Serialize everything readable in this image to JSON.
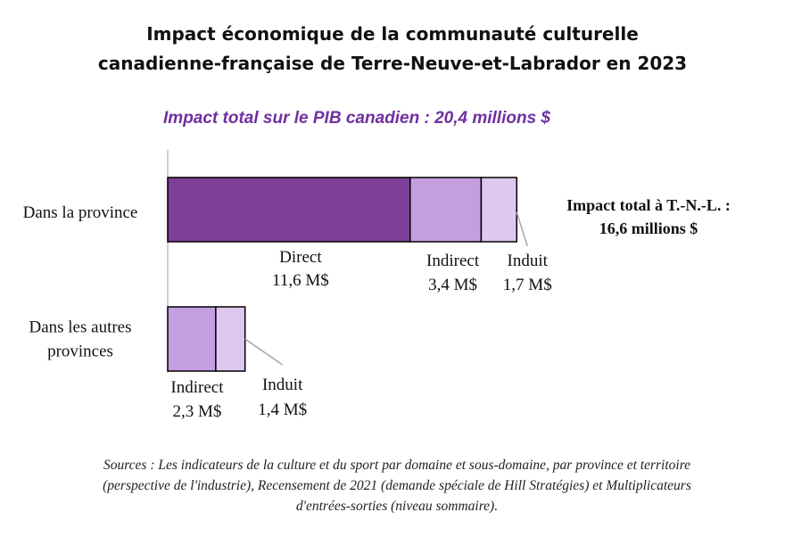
{
  "title_line1": "Impact économique de la communauté culturelle",
  "title_line2": "canadienne-française de Terre-Neuve-et-Labrador en 2023",
  "subtitle": "Impact total sur le PIB canadien : 20,4 millions $",
  "total_note_line1": "Impact total à T.-N.-L. :",
  "total_note_line2": "16,6 millions $",
  "source_line1": "Sources : Les indicateurs de la culture et du sport  par domaine et sous-domaine, par province et territoire",
  "source_line2": "(perspective de l'industrie), Recensement de 2021 (demande spéciale de Hill Stratégies) et Multiplicateurs",
  "source_line3": "d'entrées-sorties  (niveau sommaire).",
  "chart_data": {
    "type": "bar",
    "orientation": "horizontal",
    "stacked": true,
    "categories": [
      "Dans la province",
      "Dans les autres provinces"
    ],
    "category_lines": [
      [
        "Dans la province"
      ],
      [
        "Dans les autres",
        "provinces"
      ]
    ],
    "series": [
      {
        "name": "Direct",
        "values": [
          11.6,
          0
        ],
        "labels": [
          "11,6 M$",
          ""
        ],
        "color": "#7e3f98"
      },
      {
        "name": "Indirect",
        "values": [
          3.4,
          2.3
        ],
        "labels": [
          "3,4 M$",
          "2,3 M$"
        ],
        "color": "#c39ee0"
      },
      {
        "name": "Induit",
        "values": [
          1.7,
          1.4
        ],
        "labels": [
          "1,7 M$",
          "1,4 M$"
        ],
        "color": "#dfc8ef"
      }
    ],
    "xlim": [
      0,
      17.5
    ],
    "grid": false,
    "legend": "none"
  }
}
